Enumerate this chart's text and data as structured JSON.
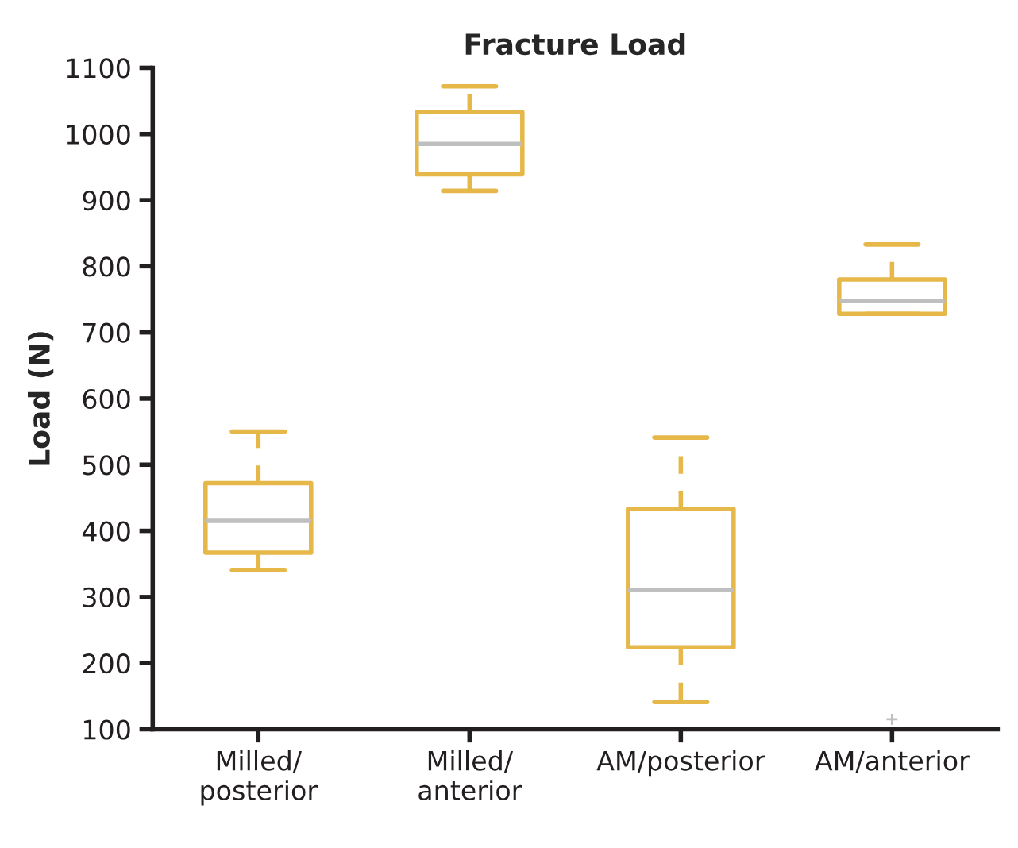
{
  "chart_data": {
    "type": "box",
    "title": "Fracture Load",
    "ylabel": "Load (N)",
    "categories": [
      "Milled/\nposterior",
      "Milled/\nanterior",
      "AM/posterior",
      "AM/anterior"
    ],
    "series": [
      {
        "color": "#e6b84a",
        "boxes": [
          {
            "low": 341,
            "q1": 367,
            "median": 415,
            "q3": 472,
            "high": 550
          },
          {
            "low": 914,
            "q1": 939,
            "median": 985,
            "q3": 1033,
            "high": 1072
          },
          {
            "low": 141,
            "q1": 224,
            "median": 311,
            "q3": 433,
            "high": 541
          },
          {
            "low": 728,
            "q1": 728,
            "median": 748,
            "q3": 780,
            "high": 833,
            "outliers": [
              115
            ]
          }
        ]
      }
    ],
    "ylim": [
      100,
      1100
    ],
    "yticks": [
      100,
      200,
      300,
      400,
      500,
      600,
      700,
      800,
      900,
      1000,
      1100
    ],
    "grid": false,
    "legend": false
  }
}
